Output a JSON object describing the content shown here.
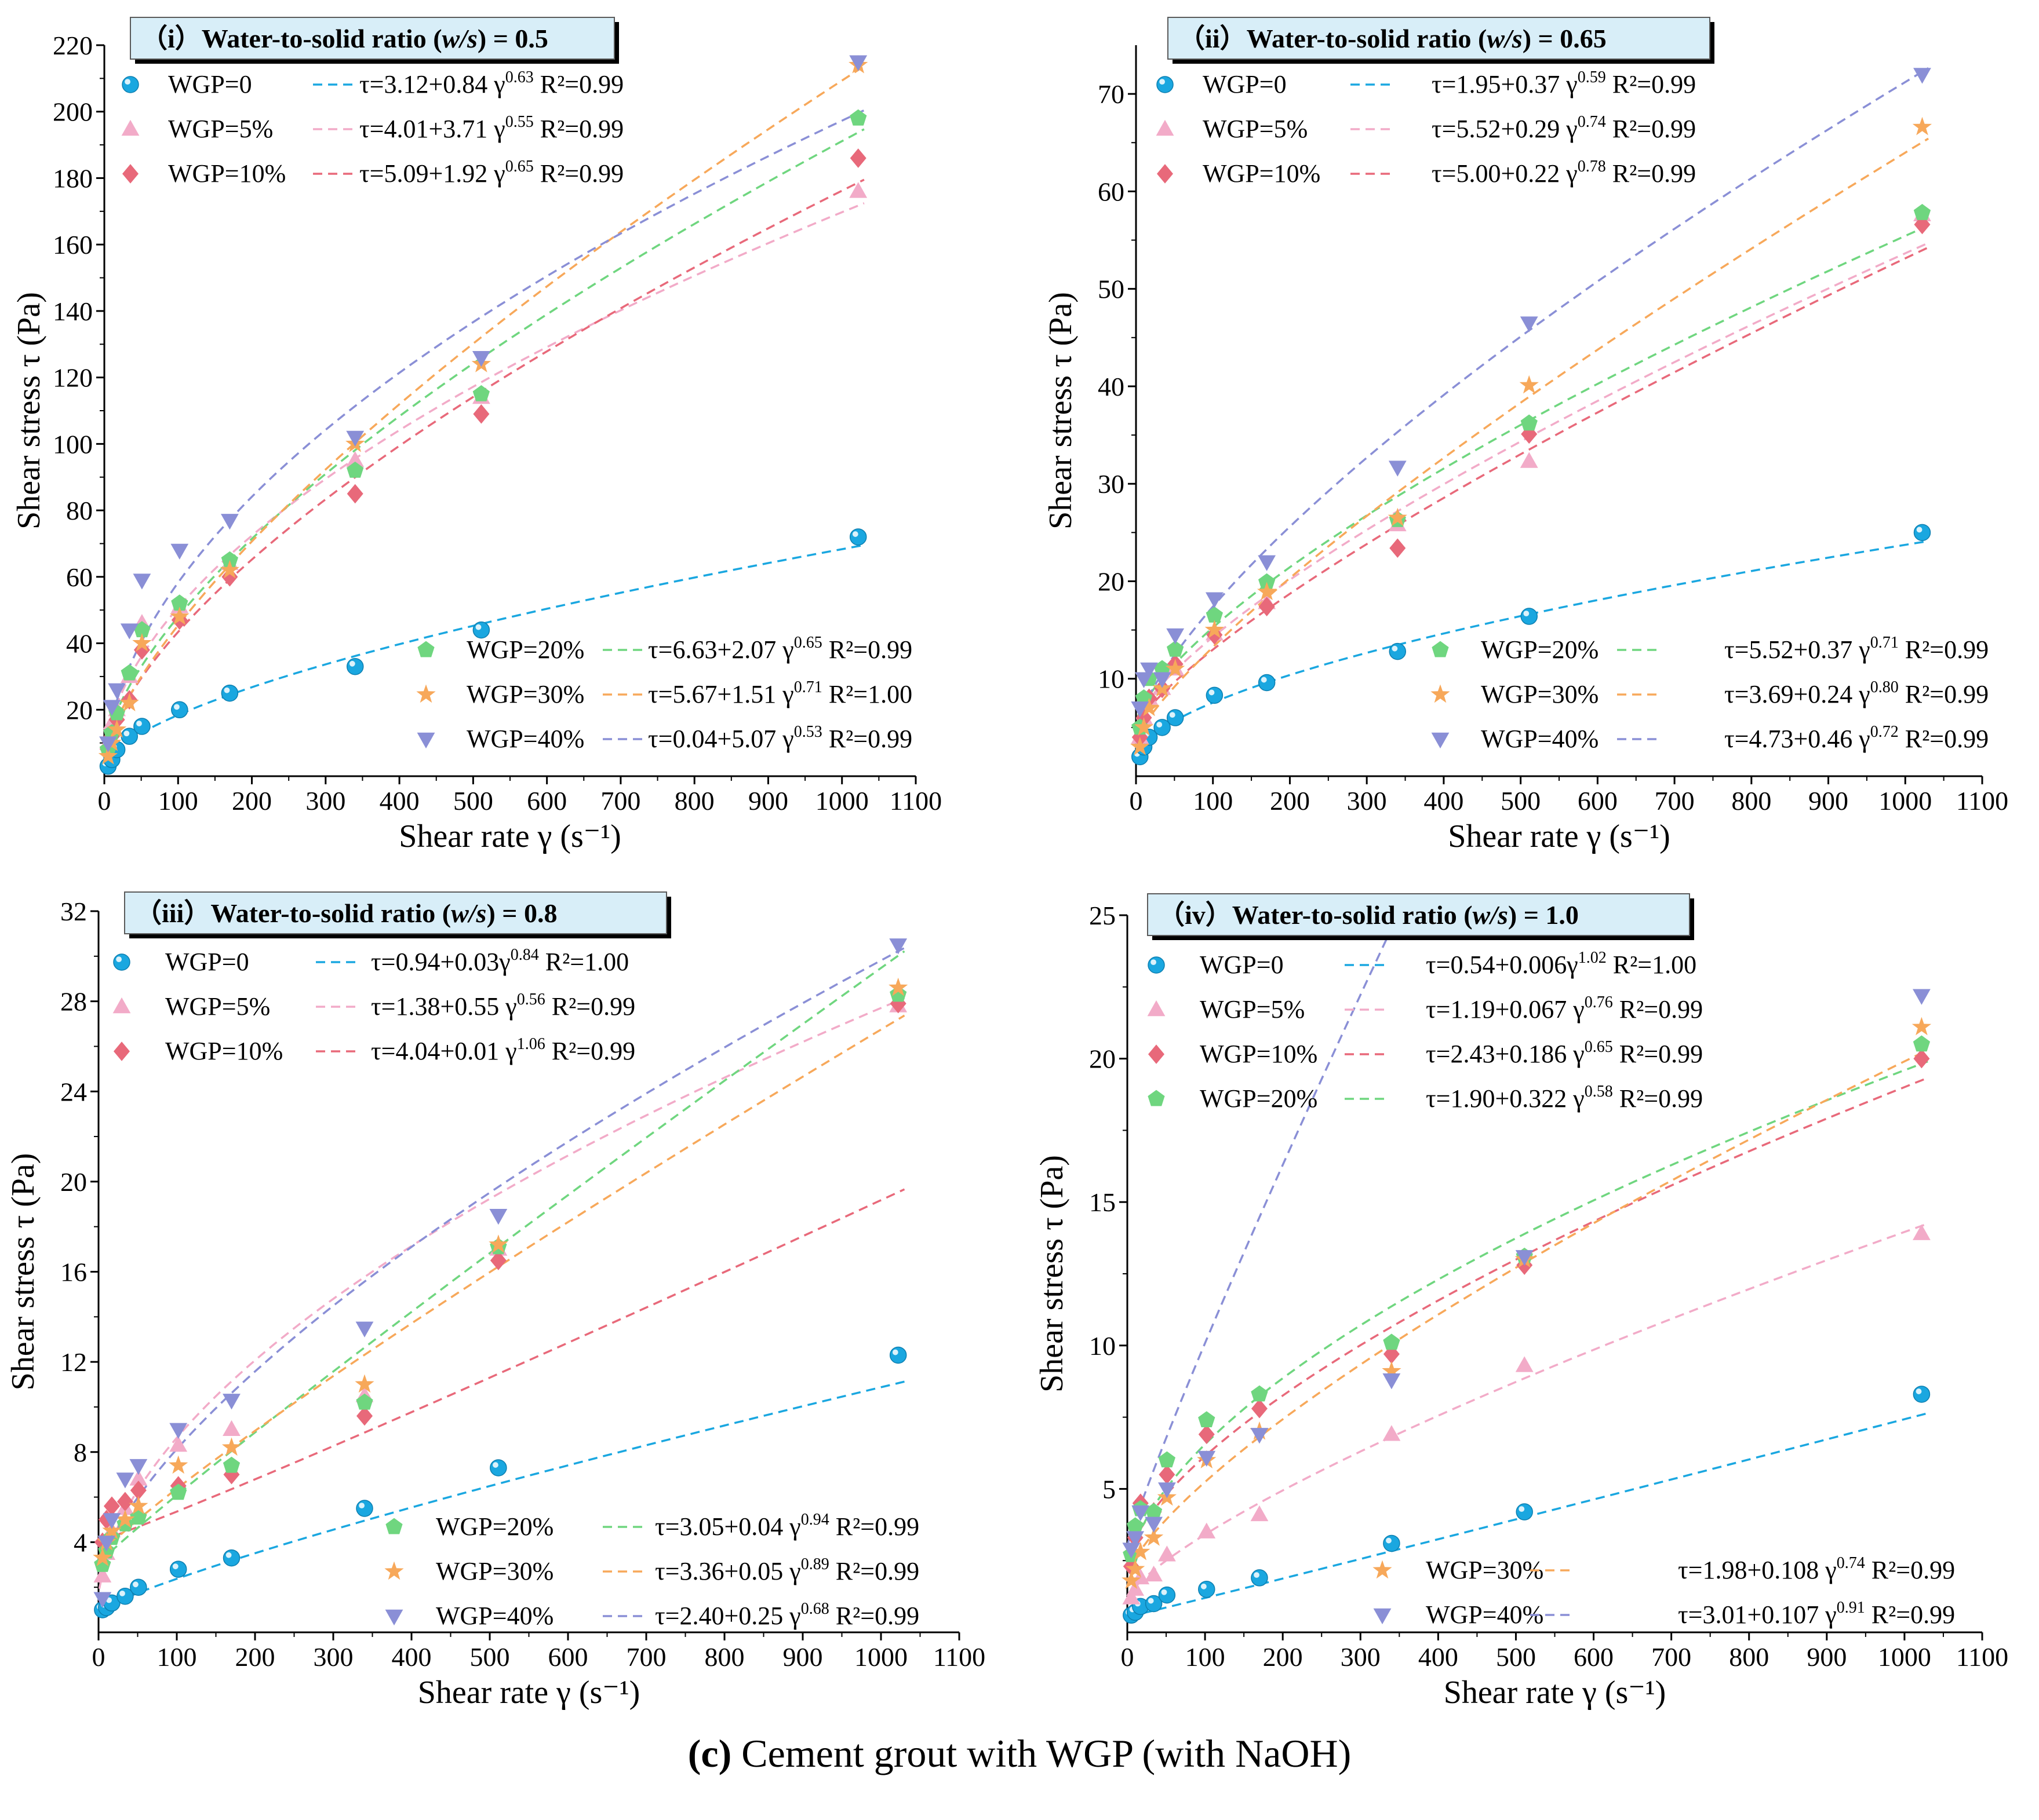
{
  "caption": {
    "letter": "(c)",
    "text": "Cement grout with WGP (with NaOH)"
  },
  "colors": {
    "WGP=0": "#1aa7e0",
    "WGP=5%": "#f2abc8",
    "WGP=10%": "#e8697a",
    "WGP=20%": "#6fd67f",
    "WGP=30%": "#f7a85a",
    "WGP=40%": "#8a8fd6"
  },
  "chart_data": [
    {
      "type": "scatter",
      "title": {
        "roman": "（i）",
        "text": "Water-to-solid ratio (w/s) = 0.5"
      },
      "xlabel": "Shear rate γ (s⁻¹)",
      "ylabel": "Shear stress τ  (Pa)",
      "xlim": [
        0,
        1100
      ],
      "ylim": [
        0,
        220
      ],
      "yticks": [
        20,
        40,
        60,
        80,
        100,
        120,
        140,
        160,
        180,
        200,
        220
      ],
      "xticks": [
        0,
        100,
        200,
        300,
        400,
        500,
        600,
        700,
        800,
        900,
        1000,
        1100
      ],
      "x": [
        5.1,
        10.2,
        17.0,
        34.0,
        51.0,
        102.0,
        170.0,
        340.0,
        511.0,
        1022.0
      ],
      "series": [
        {
          "name": "WGP=0",
          "marker": "sphere",
          "values": [
            3,
            5,
            8,
            12,
            15,
            20,
            25,
            33,
            44,
            72
          ],
          "fit": {
            "a": 3.12,
            "b": 0.84,
            "n": 0.63
          },
          "equation": "τ=3.12+0.84 γ",
          "exponent": "0.63",
          "r2": "R²=0.99"
        },
        {
          "name": "WGP=5%",
          "marker": "triangle-up",
          "values": [
            10,
            16,
            20,
            30,
            46,
            51,
            64,
            95,
            114,
            176
          ],
          "fit": {
            "a": 4.01,
            "b": 3.71,
            "n": 0.55
          },
          "equation": "τ=4.01+3.71 γ",
          "exponent": "0.55",
          "r2": "R²=0.99"
        },
        {
          "name": "WGP=10%",
          "marker": "diamond",
          "values": [
            8,
            12,
            17,
            23,
            38,
            47,
            60,
            85,
            109,
            186
          ],
          "fit": {
            "a": 5.09,
            "b": 1.92,
            "n": 0.65
          },
          "equation": "τ=5.09+1.92 γ",
          "exponent": "0.65",
          "r2": "R²=0.99"
        },
        {
          "name": "WGP=20%",
          "marker": "pentagon",
          "values": [
            8,
            13,
            19,
            31,
            44,
            52,
            65,
            92,
            115,
            198
          ],
          "fit": {
            "a": 6.63,
            "b": 2.07,
            "n": 0.65
          },
          "equation": "τ=6.63+2.07 γ",
          "exponent": "0.65",
          "r2": "R²=0.99"
        },
        {
          "name": "WGP=30%",
          "marker": "star",
          "values": [
            6,
            10,
            14,
            22,
            40,
            48,
            62,
            100,
            124,
            214
          ],
          "fit": {
            "a": 5.67,
            "b": 1.51,
            "n": 0.71
          },
          "equation": "τ=5.67+1.51 γ",
          "exponent": "0.71",
          "r2": "R²=1.00"
        },
        {
          "name": "WGP=40%",
          "marker": "triangle-down",
          "values": [
            10,
            21,
            26,
            44,
            59,
            68,
            77,
            102,
            126,
            215
          ],
          "fit": {
            "a": 0.04,
            "b": 5.07,
            "n": 0.53
          },
          "equation": "τ=0.04+5.07 γ",
          "exponent": "0.53",
          "r2": "R²=0.99"
        }
      ],
      "legend_groups": [
        [
          0,
          1,
          2
        ],
        [
          3,
          4,
          5
        ]
      ]
    },
    {
      "type": "scatter",
      "title": {
        "roman": "（ii）",
        "text": "Water-to-solid ratio (w/s)  = 0.65"
      },
      "xlabel": "Shear rate γ (s⁻¹)",
      "ylabel": "Shear stress τ  (Pa)",
      "xlim": [
        0,
        1100
      ],
      "ylim": [
        0,
        75
      ],
      "yticks": [
        10,
        20,
        30,
        40,
        50,
        60,
        70
      ],
      "xticks": [
        0,
        100,
        200,
        300,
        400,
        500,
        600,
        700,
        800,
        900,
        1000,
        1100
      ],
      "x": [
        5.1,
        10.2,
        17.0,
        34.0,
        51.0,
        102.0,
        170.0,
        340.0,
        511.0,
        1022.0
      ],
      "series": [
        {
          "name": "WGP=0",
          "marker": "sphere",
          "values": [
            2,
            3,
            4,
            5,
            6,
            8.3,
            9.6,
            12.8,
            16.4,
            25
          ],
          "fit": {
            "a": 1.95,
            "b": 0.37,
            "n": 0.59
          },
          "equation": "τ=1.95+0.37 γ",
          "exponent": "0.59",
          "r2": "R²=0.99"
        },
        {
          "name": "WGP=5%",
          "marker": "triangle-up",
          "values": [
            4,
            6,
            8,
            9,
            11,
            14.6,
            17.8,
            25.8,
            32.3,
            57.6
          ],
          "fit": {
            "a": 5.52,
            "b": 0.29,
            "n": 0.74
          },
          "equation": "τ=5.52+0.29 γ",
          "exponent": "0.74",
          "r2": "R²=0.99"
        },
        {
          "name": "WGP=10%",
          "marker": "diamond",
          "values": [
            4,
            6,
            8,
            9,
            11.5,
            14.5,
            17.4,
            23.4,
            35.1,
            56.6
          ],
          "fit": {
            "a": 5.0,
            "b": 0.22,
            "n": 0.78
          },
          "equation": "τ=5.00+0.22 γ",
          "exponent": "0.78",
          "r2": "R²=0.99"
        },
        {
          "name": "WGP=20%",
          "marker": "pentagon",
          "values": [
            5,
            8,
            10,
            11,
            13,
            16.5,
            19.9,
            26.3,
            36.2,
            57.8
          ],
          "fit": {
            "a": 5.52,
            "b": 0.37,
            "n": 0.71
          },
          "equation": "τ=5.52+0.37 γ",
          "exponent": "0.71",
          "r2": "R²=0.99"
        },
        {
          "name": "WGP=30%",
          "marker": "star",
          "values": [
            3,
            5,
            7,
            9,
            11,
            15,
            18.9,
            26.5,
            40.1,
            66.6
          ],
          "fit": {
            "a": 3.69,
            "b": 0.24,
            "n": 0.8
          },
          "equation": "τ=3.69+0.24 γ",
          "exponent": "0.80",
          "r2": "R²=0.99"
        },
        {
          "name": "WGP=40%",
          "marker": "triangle-down",
          "values": [
            7,
            10,
            11,
            10,
            14.5,
            18.2,
            22.0,
            31.7,
            46.5,
            72
          ],
          "fit": {
            "a": 4.73,
            "b": 0.46,
            "n": 0.72
          },
          "equation": "τ=4.73+0.46 γ",
          "exponent": "0.72",
          "r2": "R²=0.99"
        }
      ],
      "legend_groups": [
        [
          0,
          1,
          2
        ],
        [
          3,
          4,
          5
        ]
      ]
    },
    {
      "type": "scatter",
      "title": {
        "roman": "（iii）",
        "text": "Water-to-solid ratio (w/s)  = 0.8"
      },
      "xlabel": "Shear rate γ (s⁻¹)",
      "ylabel": "Shear stress τ  (Pa)",
      "xlim": [
        0,
        1100
      ],
      "ylim": [
        0,
        32
      ],
      "yticks": [
        4,
        8,
        12,
        16,
        20,
        24,
        28,
        32
      ],
      "xticks": [
        0,
        100,
        200,
        300,
        400,
        500,
        600,
        700,
        800,
        900,
        1000,
        1100
      ],
      "x": [
        5.1,
        10.2,
        17.0,
        34.0,
        51.0,
        102.0,
        170.0,
        340.0,
        511.0,
        1022.0
      ],
      "series": [
        {
          "name": "WGP=0",
          "marker": "sphere",
          "values": [
            1.0,
            1.1,
            1.3,
            1.6,
            2.0,
            2.8,
            3.3,
            5.5,
            7.3,
            12.3
          ],
          "fit": {
            "a": 0.94,
            "b": 0.03,
            "n": 0.84
          },
          "equation": "τ=0.94+0.03γ",
          "exponent": "0.84",
          "r2": "R²=1.00"
        },
        {
          "name": "WGP=5%",
          "marker": "triangle-up",
          "values": [
            2.5,
            3.5,
            4.5,
            5.5,
            6.8,
            8.3,
            9.0,
            10.5,
            17.0,
            27.8
          ],
          "fit": {
            "a": 1.38,
            "b": 0.55,
            "n": 0.56
          },
          "equation": "τ=1.38+0.55 γ",
          "exponent": "0.56",
          "r2": "R²=0.99"
        },
        {
          "name": "WGP=10%",
          "marker": "diamond",
          "values": [
            4.0,
            5.0,
            5.6,
            5.8,
            6.3,
            6.5,
            7.0,
            9.6,
            16.5,
            27.9
          ],
          "fit": {
            "a": 4.04,
            "b": 0.01,
            "n": 1.06
          },
          "equation": "τ=4.04+0.01 γ",
          "exponent": "1.06",
          "r2": "R²=0.99"
        },
        {
          "name": "WGP=20%",
          "marker": "pentagon",
          "values": [
            3.0,
            3.6,
            4.2,
            4.8,
            5.1,
            6.2,
            7.4,
            10.2,
            17.1,
            28.3
          ],
          "fit": {
            "a": 3.05,
            "b": 0.04,
            "n": 0.94
          },
          "equation": "τ=3.05+0.04 γ",
          "exponent": "0.94",
          "r2": "R²=0.99"
        },
        {
          "name": "WGP=30%",
          "marker": "star",
          "values": [
            3.3,
            4.0,
            4.5,
            5.0,
            5.6,
            7.4,
            8.2,
            11.0,
            17.2,
            28.6
          ],
          "fit": {
            "a": 3.36,
            "b": 0.05,
            "n": 0.89
          },
          "equation": "τ=3.36+0.05 γ",
          "exponent": "0.89",
          "r2": "R²=0.99"
        },
        {
          "name": "WGP=40%",
          "marker": "triangle-down",
          "values": [
            1.5,
            4.0,
            5.0,
            6.8,
            7.4,
            9.0,
            10.3,
            13.5,
            18.5,
            30.5
          ],
          "fit": {
            "a": 2.4,
            "b": 0.25,
            "n": 0.68
          },
          "equation": "τ=2.40+0.25 γ",
          "exponent": "0.68",
          "r2": "R²=0.99"
        }
      ],
      "legend_groups": [
        [
          0,
          1,
          2
        ],
        [
          3,
          4,
          5
        ]
      ]
    },
    {
      "type": "scatter",
      "title": {
        "roman": "（iv）",
        "text": "Water-to-solid ratio (w/s)  = 1.0"
      },
      "xlabel": "Shear rate γ (s⁻¹)",
      "ylabel": "Shear stress τ  (Pa)",
      "xlim": [
        0,
        1100
      ],
      "ylim": [
        0,
        25
      ],
      "yticks": [
        5,
        10,
        15,
        20,
        25
      ],
      "xticks": [
        0,
        100,
        200,
        300,
        400,
        500,
        600,
        700,
        800,
        900,
        1000,
        1100
      ],
      "x": [
        5.1,
        10.2,
        17.0,
        34.0,
        51.0,
        102.0,
        170.0,
        340.0,
        511.0,
        1022.0
      ],
      "series": [
        {
          "name": "WGP=0",
          "marker": "sphere",
          "values": [
            0.6,
            0.7,
            0.9,
            1.0,
            1.3,
            1.5,
            1.9,
            3.1,
            4.2,
            8.3
          ],
          "fit": {
            "a": 0.54,
            "b": 0.006,
            "n": 1.02
          },
          "equation": "τ=0.54+0.006γ",
          "exponent": "1.02",
          "r2": "R²=1.00"
        },
        {
          "name": "WGP=5%",
          "marker": "triangle-up",
          "values": [
            1.2,
            1.5,
            1.9,
            2.0,
            2.7,
            3.5,
            4.1,
            6.9,
            9.3,
            13.9
          ],
          "fit": {
            "a": 1.19,
            "b": 0.067,
            "n": 0.76
          },
          "equation": "τ=1.19+0.067 γ",
          "exponent": "0.76",
          "r2": "R²=0.99"
        },
        {
          "name": "WGP=10%",
          "marker": "diamond",
          "values": [
            2.3,
            3.3,
            4.5,
            4.2,
            5.5,
            6.9,
            7.8,
            9.7,
            12.8,
            20.0
          ],
          "fit": {
            "a": 2.43,
            "b": 0.186,
            "n": 0.65
          },
          "equation": "τ=2.43+0.186 γ",
          "exponent": "0.65",
          "r2": "R²=0.99"
        },
        {
          "name": "WGP=20%",
          "marker": "pentagon",
          "values": [
            2.7,
            3.7,
            4.3,
            4.2,
            6.0,
            7.4,
            8.3,
            10.1,
            13.1,
            20.5
          ],
          "fit": {
            "a": 1.9,
            "b": 0.322,
            "n": 0.58
          },
          "equation": "τ=1.90+0.322 γ",
          "exponent": "0.58",
          "r2": "R²=0.99"
        },
        {
          "name": "WGP=30%",
          "marker": "star",
          "values": [
            1.8,
            2.2,
            2.8,
            3.3,
            4.7,
            6.0,
            7.0,
            9.1,
            13.0,
            21.1
          ],
          "fit": {
            "a": 1.98,
            "b": 0.108,
            "n": 0.74
          },
          "equation": "τ=1.98+0.108 γ",
          "exponent": "0.74",
          "r2": "R²=0.99"
        },
        {
          "name": "WGP=40%",
          "marker": "triangle-down",
          "values": [
            2.9,
            3.3,
            4.2,
            3.8,
            5.0,
            6.1,
            6.9,
            8.8,
            13.1,
            22.2
          ],
          "fit": {
            "a": 3.01,
            "b": 0.107,
            "n": 0.91
          },
          "equation": "τ=3.01+0.107 γ",
          "exponent": "0.91",
          "r2": "R²=0.99"
        }
      ],
      "legend_groups": [
        [
          0,
          1,
          2,
          3
        ],
        [
          4,
          5
        ]
      ]
    }
  ]
}
